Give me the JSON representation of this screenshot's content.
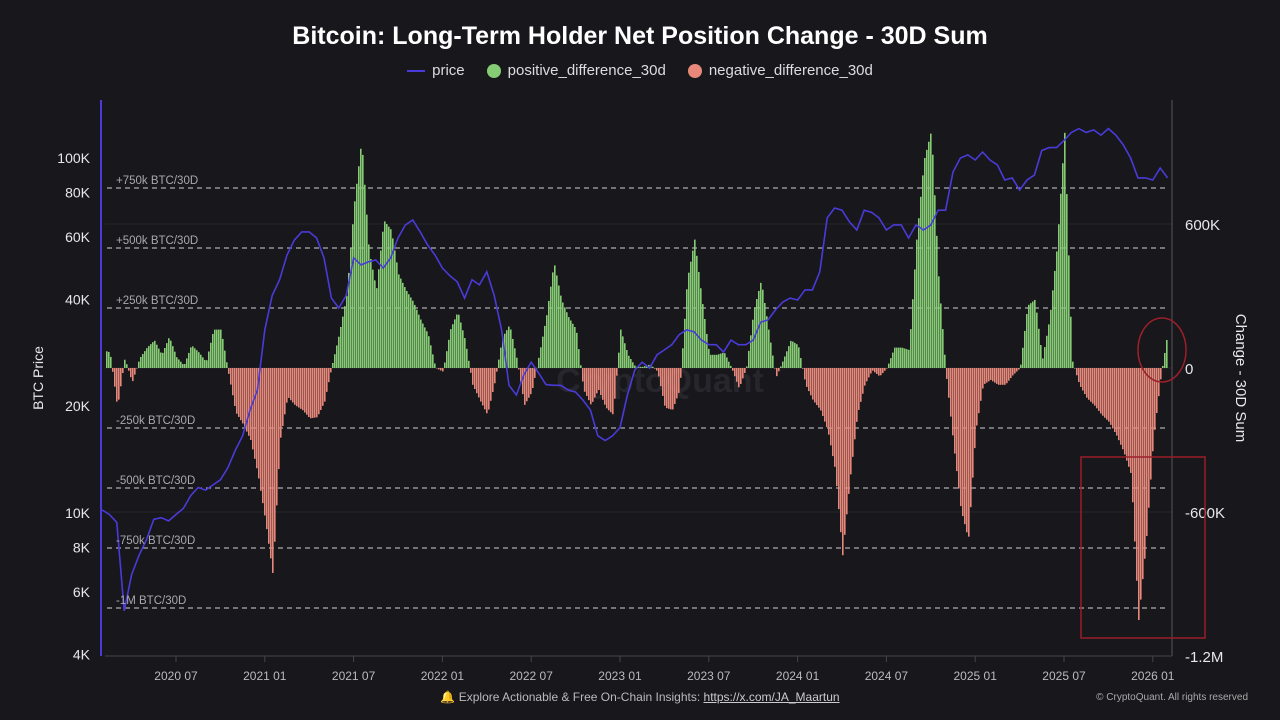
{
  "title": "Bitcoin: Long-Term Holder Net Position Change - 30D Sum",
  "footer": {
    "bell_icon": "bell-icon",
    "text": "Explore Actionable & Free On-Chain Insights: ",
    "link": "https://x.com/JA_Maartun",
    "copyright": "© CryptoQuant. All rights reserved"
  },
  "watermark": "CryptoQuant",
  "colors": {
    "background": "#17171c",
    "price": "#4a3bd8",
    "positive": "#86cc74",
    "negative": "#e8887b",
    "annotation": "#9c1f2a"
  },
  "chart_data": {
    "type": "bar",
    "title": "Bitcoin: Long-Term Holder Net Position Change - 30D Sum",
    "legend": [
      "price",
      "positive_difference_30d",
      "negative_difference_30d"
    ],
    "legend_position": "top-center",
    "xlabel": "",
    "ylabel_left": "BTC Price",
    "ylabel_right": "Change - 30D Sum",
    "y_left_scale": "log",
    "y_left_range": [
      4000,
      146000
    ],
    "y_right_range": [
      -1200000,
      1120000
    ],
    "x_ticks": [
      "2020 07",
      "2021 01",
      "2021 07",
      "2022 01",
      "2022 07",
      "2023 01",
      "2023 07",
      "2024 01",
      "2024 07",
      "2025 01",
      "2025 07",
      "2026 01"
    ],
    "y_left_ticks": [
      {
        "label": "100K",
        "value": 100000
      },
      {
        "label": "80K",
        "value": 80000
      },
      {
        "label": "60K",
        "value": 60000
      },
      {
        "label": "40K",
        "value": 40000
      },
      {
        "label": "20K",
        "value": 20000
      },
      {
        "label": "10K",
        "value": 10000
      },
      {
        "label": "8K",
        "value": 8000
      },
      {
        "label": "6K",
        "value": 6000
      },
      {
        "label": "4K",
        "value": 4000
      }
    ],
    "y_right_ticks": [
      {
        "label": "600K",
        "value": 600000
      },
      {
        "label": "0",
        "value": 0
      },
      {
        "label": "-600K",
        "value": -600000
      },
      {
        "label": "-1.2M",
        "value": -1200000
      }
    ],
    "reference_lines": [
      {
        "label": "+750k BTC/30D",
        "value": 750000
      },
      {
        "label": "+500k BTC/30D",
        "value": 500000
      },
      {
        "label": "+250k BTC/30D",
        "value": 250000
      },
      {
        "label": "-250k BTC/30D",
        "value": -250000
      },
      {
        "label": "-500k BTC/30D",
        "value": -500000
      },
      {
        "label": "-750k BTC/30D",
        "value": -750000
      },
      {
        "label": "-1M BTC/30D",
        "value": -1000000
      }
    ],
    "grid": true,
    "x_start": "2020-02-01",
    "x_interval": "semi-monthly",
    "change_30d_kbtc": [
      75,
      65,
      -165,
      40,
      -60,
      40,
      85,
      115,
      55,
      130,
      45,
      10,
      95,
      65,
      25,
      160,
      160,
      -20,
      -185,
      -235,
      -300,
      -445,
      -635,
      -860,
      -300,
      -120,
      -155,
      -175,
      -210,
      -205,
      -140,
      10,
      145,
      305,
      680,
      950,
      490,
      325,
      615,
      575,
      390,
      325,
      275,
      200,
      140,
      0,
      -15,
      160,
      235,
      115,
      -70,
      -135,
      -195,
      -60,
      125,
      180,
      35,
      -155,
      -100,
      55,
      220,
      440,
      285,
      210,
      160,
      -90,
      -155,
      -90,
      -165,
      -195,
      160,
      55,
      5,
      5,
      15,
      -15,
      -165,
      -175,
      -90,
      365,
      535,
      285,
      55,
      55,
      65,
      0,
      -85,
      0,
      240,
      365,
      160,
      -40,
      35,
      115,
      95,
      -70,
      -135,
      -175,
      -260,
      -425,
      -780,
      -465,
      -195,
      -70,
      -10,
      -35,
      0,
      85,
      85,
      75,
      535,
      865,
      990,
      365,
      -30,
      -320,
      -590,
      -715,
      -260,
      -70,
      -50,
      -70,
      -70,
      -30,
      0,
      260,
      285,
      35,
      210,
      510,
      980,
      35,
      -70,
      -125,
      -155,
      -195,
      -225,
      -280,
      -350,
      -445,
      -1050,
      -735,
      -300,
      -40,
      160
    ],
    "price_usd": [
      10200,
      9900,
      9400,
      5300,
      6700,
      7600,
      8400,
      9600,
      9700,
      9500,
      9900,
      10300,
      11200,
      11800,
      11600,
      12000,
      12400,
      13400,
      15000,
      16500,
      19500,
      22200,
      32800,
      41000,
      45400,
      53300,
      58800,
      61900,
      61900,
      59500,
      52300,
      40300,
      37800,
      41000,
      52300,
      50000,
      51000,
      51600,
      49000,
      52300,
      59500,
      64800,
      66900,
      61900,
      56900,
      53300,
      49000,
      46600,
      44800,
      40300,
      45400,
      43900,
      47800,
      41000,
      32800,
      22900,
      21500,
      24500,
      26600,
      24800,
      23000,
      22900,
      22900,
      22200,
      21900,
      20800,
      19500,
      16500,
      16000,
      16500,
      17400,
      21500,
      25300,
      26600,
      25600,
      27900,
      28800,
      29800,
      31800,
      32800,
      32400,
      30700,
      29800,
      29800,
      28400,
      30700,
      29800,
      29800,
      30700,
      34500,
      35000,
      37300,
      39300,
      40300,
      39800,
      42500,
      42500,
      47800,
      67800,
      72300,
      71300,
      66100,
      62700,
      71300,
      70300,
      67800,
      62700,
      64800,
      64800,
      59500,
      64800,
      62700,
      64800,
      71300,
      71300,
      91300,
      100000,
      102000,
      98700,
      104000,
      98700,
      95600,
      86700,
      87900,
      81200,
      86700,
      89500,
      105000,
      107000,
      107000,
      112000,
      118000,
      121000,
      118000,
      120000,
      116000,
      121000,
      116000,
      109000,
      100000,
      87900,
      87900,
      86700,
      93700,
      87900
    ]
  }
}
